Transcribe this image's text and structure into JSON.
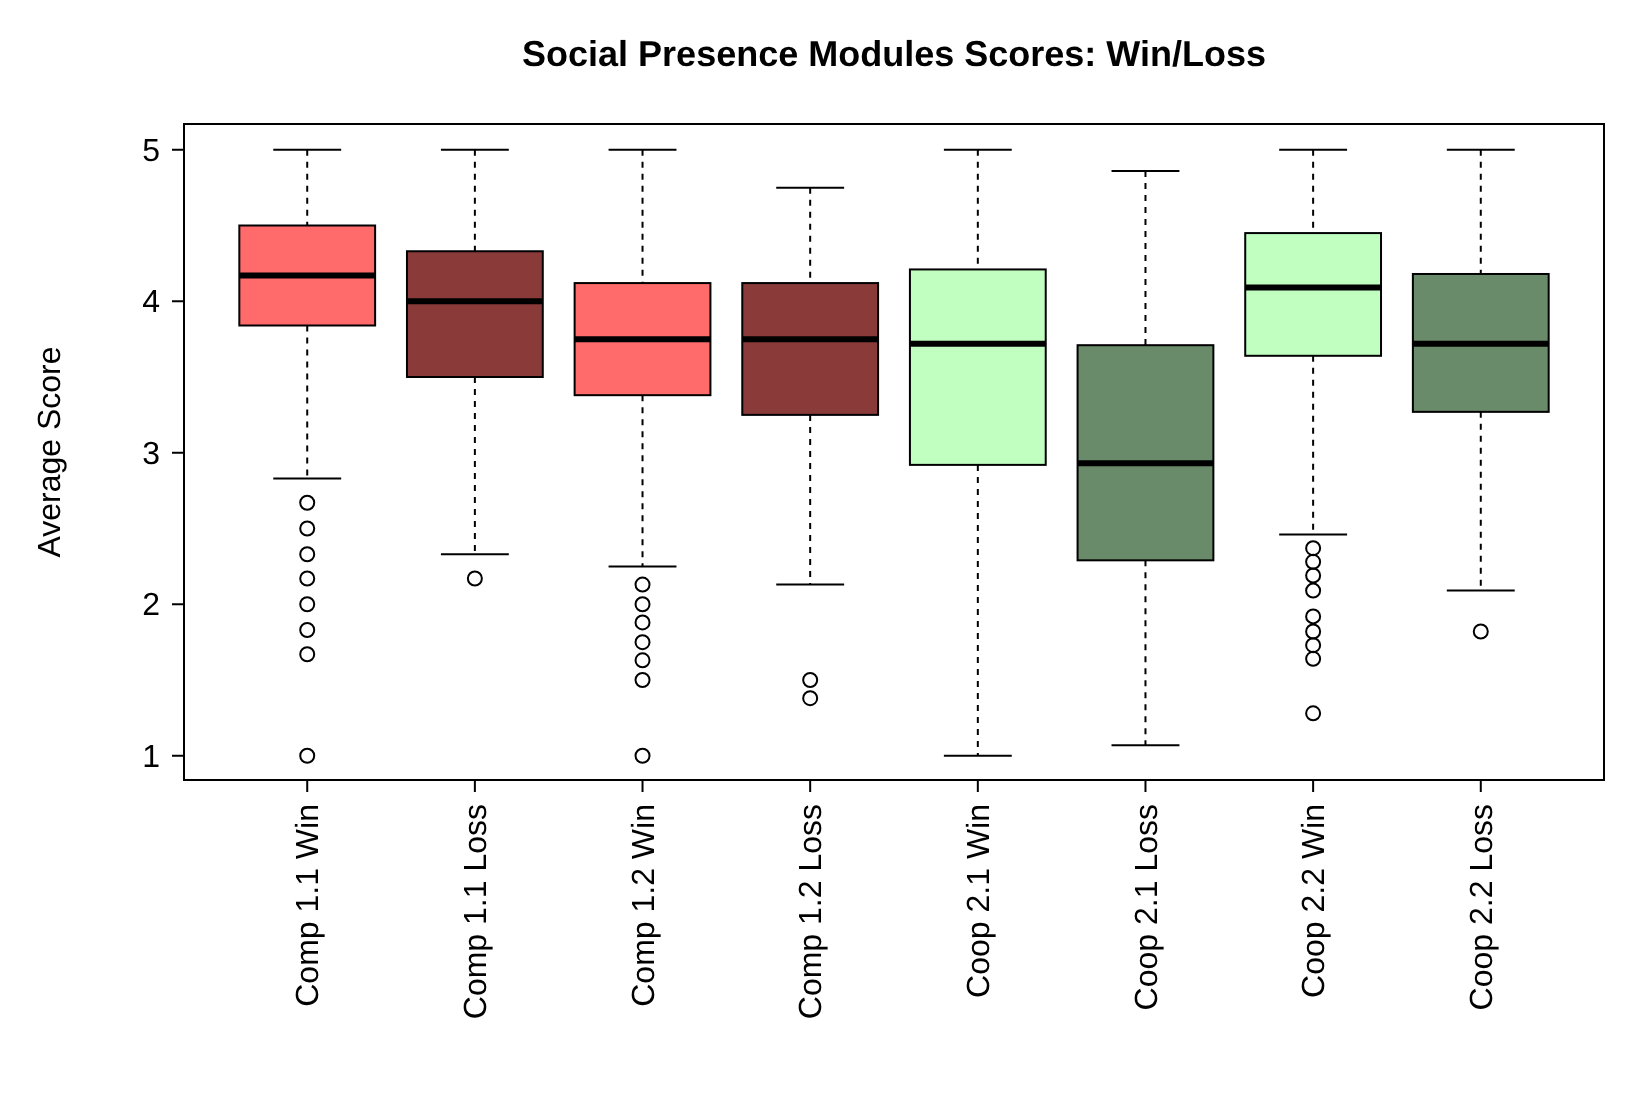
{
  "chart_data": {
    "type": "box",
    "title": "Social Presence Modules Scores: Win/Loss",
    "ylabel": "Average Score",
    "categories": [
      "Comp 1.1 Win",
      "Comp 1.1 Loss",
      "Comp 1.2 Win",
      "Comp 1.2 Loss",
      "Coop 2.1 Win",
      "Coop 2.1 Loss",
      "Coop 2.2 Win",
      "Coop 2.2 Loss"
    ],
    "colors": [
      "#ff6a6a",
      "#8b3a3a",
      "#ff6a6a",
      "#8b3a3a",
      "#c1ffc1",
      "#698b69",
      "#c1ffc1",
      "#698b69"
    ],
    "boxes": [
      {
        "low": 2.83,
        "q1": 3.84,
        "median": 4.17,
        "q3": 4.5,
        "high": 5,
        "outliers": [
          2.67,
          2.5,
          2.33,
          2.17,
          2.0,
          1.83,
          1.67,
          1.0
        ]
      },
      {
        "low": 2.33,
        "q1": 3.5,
        "median": 4.0,
        "q3": 4.33,
        "high": 5,
        "outliers": [
          2.17
        ]
      },
      {
        "low": 2.25,
        "q1": 3.38,
        "median": 3.75,
        "q3": 4.12,
        "high": 5,
        "outliers": [
          2.13,
          2.0,
          1.88,
          1.75,
          1.63,
          1.5,
          1.0
        ]
      },
      {
        "low": 2.13,
        "q1": 3.25,
        "median": 3.75,
        "q3": 4.12,
        "high": 4.75,
        "outliers": [
          1.5,
          1.38
        ]
      },
      {
        "low": 1.0,
        "q1": 2.92,
        "median": 3.72,
        "q3": 4.21,
        "high": 5
      },
      {
        "low": 1.07,
        "q1": 2.29,
        "median": 2.93,
        "q3": 3.71,
        "high": 4.86
      },
      {
        "low": 2.46,
        "q1": 3.64,
        "median": 4.09,
        "q3": 4.45,
        "high": 5,
        "outliers": [
          2.37,
          2.28,
          2.19,
          2.09,
          1.92,
          1.82,
          1.73,
          1.64,
          1.28
        ]
      },
      {
        "low": 2.09,
        "q1": 3.27,
        "median": 3.72,
        "q3": 4.18,
        "high": 5,
        "outliers": [
          1.82
        ]
      }
    ],
    "ylim": [
      0.84,
      5.17
    ],
    "yticks": [
      1,
      2,
      3,
      4,
      5
    ]
  }
}
